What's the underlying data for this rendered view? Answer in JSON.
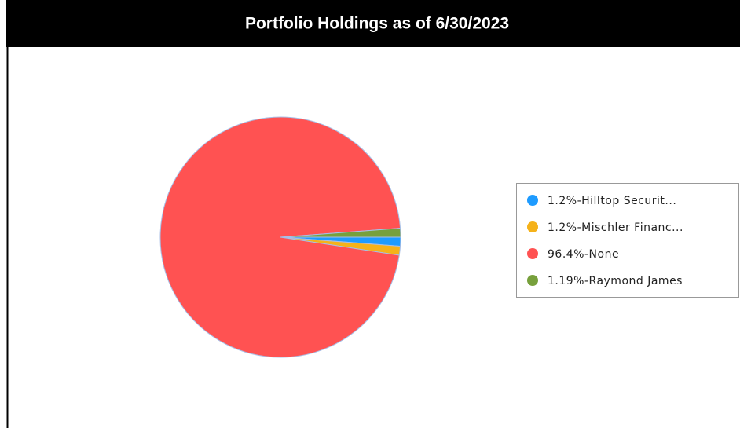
{
  "chart_data": {
    "type": "pie",
    "title": "Portfolio Holdings as of 6/30/2023",
    "categories": [
      "1.2%-Hilltop Securit...",
      "1.2%-Mischler Financ...",
      "96.4%-None",
      "1.19%-Raymond James"
    ],
    "values": [
      1.2,
      1.2,
      96.4,
      1.19
    ],
    "colors": [
      "#1e9bff",
      "#f5b21a",
      "#ff5252",
      "#77a03c"
    ],
    "legend": "right"
  }
}
